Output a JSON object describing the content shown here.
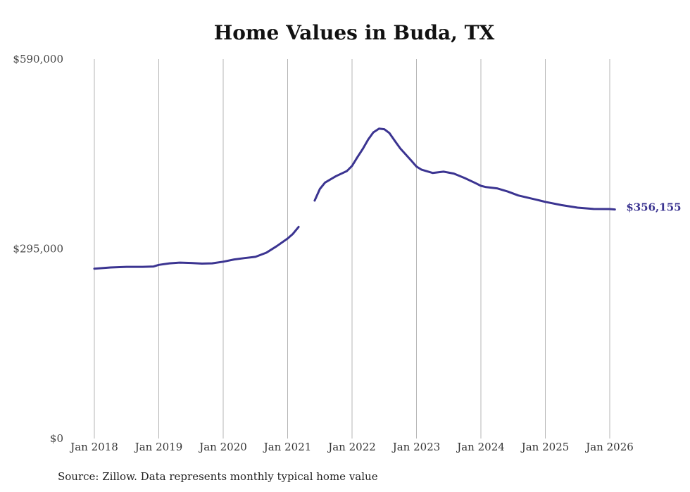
{
  "chart_data": {
    "type": "line",
    "title": "Home Values in Buda, TX",
    "xlabel": "",
    "ylabel": "",
    "ylim": [
      0,
      590000
    ],
    "yticks": [
      "$0",
      "$295,000",
      "$590,000"
    ],
    "ytick_values": [
      0,
      295000,
      590000
    ],
    "x_ticks": [
      "Jan 2018",
      "Jan 2019",
      "Jan 2020",
      "Jan 2021",
      "Jan 2022",
      "Jan 2023",
      "Jan 2024",
      "Jan 2025",
      "Jan 2026"
    ],
    "x_tick_years": [
      2018,
      2019,
      2020,
      2021,
      2022,
      2023,
      2024,
      2025,
      2026
    ],
    "grid": "vertical",
    "color": "#3b3491",
    "end_label": "$356,155",
    "series": [
      {
        "segments": [
          {
            "x": [
              2018.0,
              2018.25,
              2018.5,
              2018.75,
              2018.92,
              2019.0,
              2019.17,
              2019.33,
              2019.5,
              2019.67,
              2019.83,
              2020.0,
              2020.17,
              2020.33,
              2020.5,
              2020.67,
              2020.83,
              2021.0,
              2021.08,
              2021.17
            ],
            "y": [
              264000,
              266000,
              267000,
              267000,
              267500,
              270000,
              272500,
              273500,
              273000,
              272000,
              272500,
              275000,
              278500,
              280500,
              282500,
              289000,
              299000,
              311000,
              318000,
              329000
            ]
          },
          {
            "x": [
              2021.42,
              2021.5,
              2021.58,
              2021.75,
              2021.92,
              2022.0,
              2022.08,
              2022.17,
              2022.25,
              2022.33,
              2022.42,
              2022.5,
              2022.58,
              2022.67,
              2022.75,
              2022.92,
              2023.0,
              2023.08,
              2023.25,
              2023.42,
              2023.58,
              2023.75,
              2023.92,
              2024.0,
              2024.08,
              2024.25,
              2024.42,
              2024.58,
              2024.75,
              2024.92,
              2025.0,
              2025.25,
              2025.5,
              2025.75,
              2026.0,
              2026.08
            ],
            "y": [
              370000,
              388000,
              398000,
              408000,
              416000,
              424000,
              437000,
              451000,
              465000,
              476000,
              482000,
              481000,
              475000,
              462000,
              451000,
              432000,
              423000,
              418000,
              413000,
              415000,
              412000,
              405000,
              397000,
              393000,
              391000,
              389000,
              384000,
              378000,
              374000,
              370000,
              368000,
              363000,
              359000,
              357000,
              356800,
              356155
            ]
          }
        ]
      }
    ]
  },
  "source_text": "Source: Zillow. Data represents monthly typical home value"
}
